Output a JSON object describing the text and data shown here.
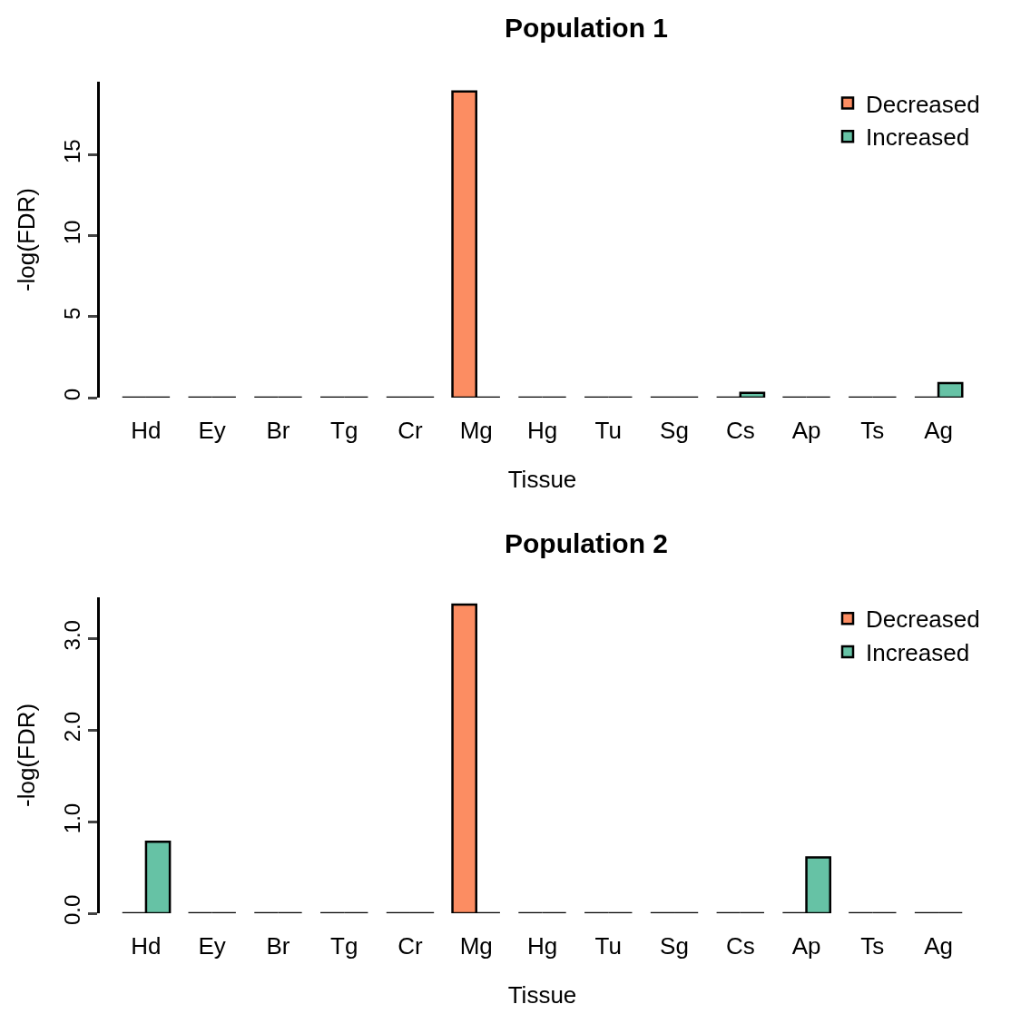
{
  "chart_data": [
    {
      "type": "bar",
      "title": "Population 1",
      "xlabel": "Tissue",
      "ylabel": "-log(FDR)",
      "categories": [
        "Hd",
        "Ey",
        "Br",
        "Tg",
        "Cr",
        "Mg",
        "Hg",
        "Tu",
        "Sg",
        "Cs",
        "Ap",
        "Ts",
        "Ag"
      ],
      "series": [
        {
          "name": "Decreased",
          "color": "#fc8d62",
          "values": [
            0,
            0,
            0,
            0,
            0,
            18.9,
            0,
            0,
            0,
            0,
            0,
            0,
            0
          ]
        },
        {
          "name": "Increased",
          "color": "#66c2a5",
          "values": [
            0,
            0,
            0,
            0,
            0,
            0,
            0,
            0,
            0,
            0.3,
            0,
            0,
            0.9
          ]
        }
      ],
      "ylim": [
        0,
        19.5
      ],
      "yticks": [
        0,
        5,
        10,
        15
      ],
      "legend": "top right"
    },
    {
      "type": "bar",
      "title": "Population 2",
      "xlabel": "Tissue",
      "ylabel": "-log(FDR)",
      "categories": [
        "Hd",
        "Ey",
        "Br",
        "Tg",
        "Cr",
        "Mg",
        "Hg",
        "Tu",
        "Sg",
        "Cs",
        "Ap",
        "Ts",
        "Ag"
      ],
      "series": [
        {
          "name": "Decreased",
          "color": "#fc8d62",
          "values": [
            0,
            0,
            0,
            0,
            0,
            3.37,
            0,
            0,
            0,
            0,
            0,
            0,
            0
          ]
        },
        {
          "name": "Increased",
          "color": "#66c2a5",
          "values": [
            0.78,
            0,
            0,
            0,
            0,
            0,
            0,
            0,
            0,
            0,
            0.61,
            0,
            0
          ]
        }
      ],
      "ylim": [
        0,
        3.45
      ],
      "yticks": [
        {
          "value": 0,
          "label": "0.0"
        },
        {
          "value": 1,
          "label": "1.0"
        },
        {
          "value": 2,
          "label": "2.0"
        },
        {
          "value": 3,
          "label": "3.0"
        }
      ],
      "legend": "top right"
    }
  ]
}
